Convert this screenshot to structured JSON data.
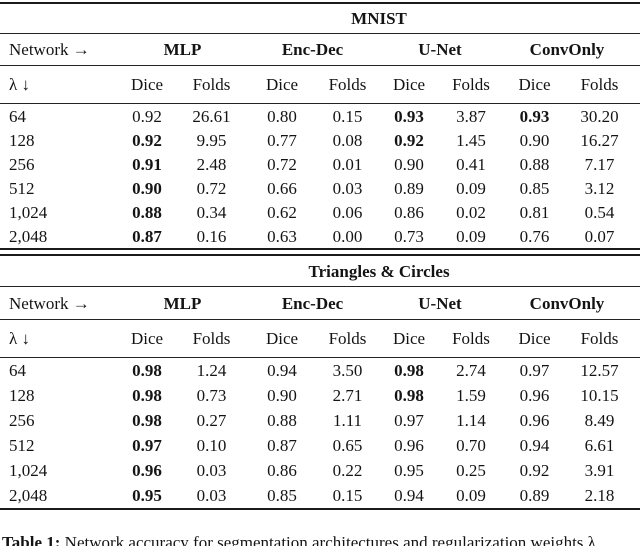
{
  "tables": [
    {
      "dataset_title": "MNIST",
      "corner_top": "Network →",
      "corner_bottom": "λ ↓",
      "groups": [
        "MLP",
        "Enc-Dec",
        "U-Net",
        "ConvOnly"
      ],
      "subheaders": [
        "Dice",
        "Folds",
        "Dice",
        "Folds",
        "Dice",
        "Folds",
        "Dice",
        "Folds"
      ],
      "rows": [
        {
          "lambda": "64",
          "cells": [
            {
              "v": "0.92",
              "b": false
            },
            {
              "v": "26.61",
              "b": false
            },
            {
              "v": "0.80",
              "b": false
            },
            {
              "v": "0.15",
              "b": false
            },
            {
              "v": "0.93",
              "b": true
            },
            {
              "v": "3.87",
              "b": false
            },
            {
              "v": "0.93",
              "b": true
            },
            {
              "v": "30.20",
              "b": false
            }
          ]
        },
        {
          "lambda": "128",
          "cells": [
            {
              "v": "0.92",
              "b": true
            },
            {
              "v": "9.95",
              "b": false
            },
            {
              "v": "0.77",
              "b": false
            },
            {
              "v": "0.08",
              "b": false
            },
            {
              "v": "0.92",
              "b": true
            },
            {
              "v": "1.45",
              "b": false
            },
            {
              "v": "0.90",
              "b": false
            },
            {
              "v": "16.27",
              "b": false
            }
          ]
        },
        {
          "lambda": "256",
          "cells": [
            {
              "v": "0.91",
              "b": true
            },
            {
              "v": "2.48",
              "b": false
            },
            {
              "v": "0.72",
              "b": false
            },
            {
              "v": "0.01",
              "b": false
            },
            {
              "v": "0.90",
              "b": false
            },
            {
              "v": "0.41",
              "b": false
            },
            {
              "v": "0.88",
              "b": false
            },
            {
              "v": "7.17",
              "b": false
            }
          ]
        },
        {
          "lambda": "512",
          "cells": [
            {
              "v": "0.90",
              "b": true
            },
            {
              "v": "0.72",
              "b": false
            },
            {
              "v": "0.66",
              "b": false
            },
            {
              "v": "0.03",
              "b": false
            },
            {
              "v": "0.89",
              "b": false
            },
            {
              "v": "0.09",
              "b": false
            },
            {
              "v": "0.85",
              "b": false
            },
            {
              "v": "3.12",
              "b": false
            }
          ]
        },
        {
          "lambda": "1,024",
          "cells": [
            {
              "v": "0.88",
              "b": true
            },
            {
              "v": "0.34",
              "b": false
            },
            {
              "v": "0.62",
              "b": false
            },
            {
              "v": "0.06",
              "b": false
            },
            {
              "v": "0.86",
              "b": false
            },
            {
              "v": "0.02",
              "b": false
            },
            {
              "v": "0.81",
              "b": false
            },
            {
              "v": "0.54",
              "b": false
            }
          ]
        },
        {
          "lambda": "2,048",
          "cells": [
            {
              "v": "0.87",
              "b": true
            },
            {
              "v": "0.16",
              "b": false
            },
            {
              "v": "0.63",
              "b": false
            },
            {
              "v": "0.00",
              "b": false
            },
            {
              "v": "0.73",
              "b": false
            },
            {
              "v": "0.09",
              "b": false
            },
            {
              "v": "0.76",
              "b": false
            },
            {
              "v": "0.07",
              "b": false
            }
          ]
        }
      ]
    },
    {
      "dataset_title": "Triangles & Circles",
      "corner_top": "Network →",
      "corner_bottom": "λ ↓",
      "groups": [
        "MLP",
        "Enc-Dec",
        "U-Net",
        "ConvOnly"
      ],
      "subheaders": [
        "Dice",
        "Folds",
        "Dice",
        "Folds",
        "Dice",
        "Folds",
        "Dice",
        "Folds"
      ],
      "rows": [
        {
          "lambda": "64",
          "cells": [
            {
              "v": "0.98",
              "b": true
            },
            {
              "v": "1.24",
              "b": false
            },
            {
              "v": "0.94",
              "b": false
            },
            {
              "v": "3.50",
              "b": false
            },
            {
              "v": "0.98",
              "b": true
            },
            {
              "v": "2.74",
              "b": false
            },
            {
              "v": "0.97",
              "b": false
            },
            {
              "v": "12.57",
              "b": false
            }
          ]
        },
        {
          "lambda": "128",
          "cells": [
            {
              "v": "0.98",
              "b": true
            },
            {
              "v": "0.73",
              "b": false
            },
            {
              "v": "0.90",
              "b": false
            },
            {
              "v": "2.71",
              "b": false
            },
            {
              "v": "0.98",
              "b": true
            },
            {
              "v": "1.59",
              "b": false
            },
            {
              "v": "0.96",
              "b": false
            },
            {
              "v": "10.15",
              "b": false
            }
          ]
        },
        {
          "lambda": "256",
          "cells": [
            {
              "v": "0.98",
              "b": true
            },
            {
              "v": "0.27",
              "b": false
            },
            {
              "v": "0.88",
              "b": false
            },
            {
              "v": "1.11",
              "b": false
            },
            {
              "v": "0.97",
              "b": false
            },
            {
              "v": "1.14",
              "b": false
            },
            {
              "v": "0.96",
              "b": false
            },
            {
              "v": "8.49",
              "b": false
            }
          ]
        },
        {
          "lambda": "512",
          "cells": [
            {
              "v": "0.97",
              "b": true
            },
            {
              "v": "0.10",
              "b": false
            },
            {
              "v": "0.87",
              "b": false
            },
            {
              "v": "0.65",
              "b": false
            },
            {
              "v": "0.96",
              "b": false
            },
            {
              "v": "0.70",
              "b": false
            },
            {
              "v": "0.94",
              "b": false
            },
            {
              "v": "6.61",
              "b": false
            }
          ]
        },
        {
          "lambda": "1,024",
          "cells": [
            {
              "v": "0.96",
              "b": true
            },
            {
              "v": "0.03",
              "b": false
            },
            {
              "v": "0.86",
              "b": false
            },
            {
              "v": "0.22",
              "b": false
            },
            {
              "v": "0.95",
              "b": false
            },
            {
              "v": "0.25",
              "b": false
            },
            {
              "v": "0.92",
              "b": false
            },
            {
              "v": "3.91",
              "b": false
            }
          ]
        },
        {
          "lambda": "2,048",
          "cells": [
            {
              "v": "0.95",
              "b": true
            },
            {
              "v": "0.03",
              "b": false
            },
            {
              "v": "0.85",
              "b": false
            },
            {
              "v": "0.15",
              "b": false
            },
            {
              "v": "0.94",
              "b": false
            },
            {
              "v": "0.09",
              "b": false
            },
            {
              "v": "0.89",
              "b": false
            },
            {
              "v": "2.18",
              "b": false
            }
          ]
        }
      ]
    }
  ],
  "caption": {
    "label": "Table 1:",
    "text": "Network accuracy for segmentation architectures and regularization weights λ."
  }
}
